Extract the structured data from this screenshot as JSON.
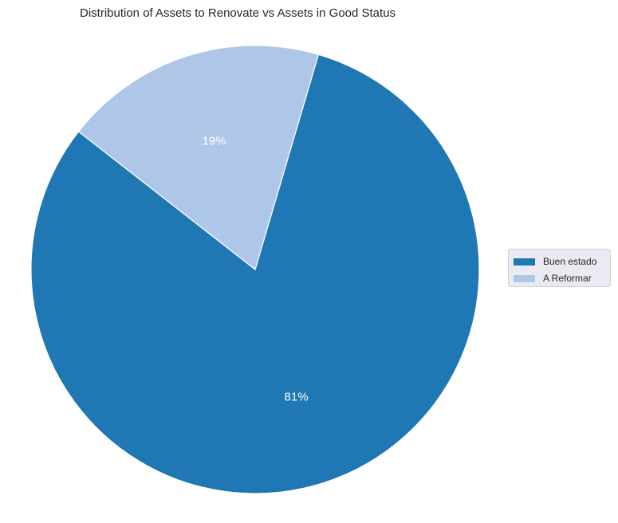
{
  "chart_data": {
    "type": "pie",
    "title": "Distribution of Assets to Renovate vs Assets in Good Status",
    "slices": [
      {
        "label": "Buen estado",
        "value": 81,
        "pct_label": "81%",
        "color": "#1f77b4"
      },
      {
        "label": "A Reformar",
        "value": 19,
        "pct_label": "19%",
        "color": "#aec7e8"
      }
    ],
    "legend_placement": "center-right"
  }
}
